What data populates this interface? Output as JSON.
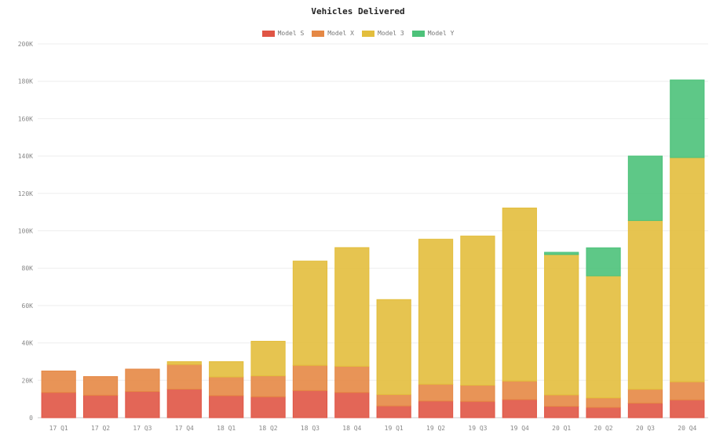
{
  "chart_data": {
    "type": "bar",
    "stacked": true,
    "title": "Vehicles Delivered",
    "categories": [
      "17 Q1",
      "17 Q2",
      "17 Q3",
      "17 Q4",
      "18 Q1",
      "18 Q2",
      "18 Q3",
      "18 Q4",
      "19 Q1",
      "19 Q2",
      "19 Q3",
      "19 Q4",
      "20 Q1",
      "20 Q2",
      "20 Q3",
      "20 Q4"
    ],
    "series": [
      {
        "name": "Model S",
        "color": "#e05545",
        "values": [
          13500,
          12000,
          14000,
          15300,
          11800,
          11200,
          14500,
          13500,
          6300,
          8900,
          8700,
          9700,
          6100,
          5500,
          7800,
          9500
        ]
      },
      {
        "name": "Model X",
        "color": "#e58845",
        "values": [
          11500,
          10000,
          12000,
          13200,
          10000,
          11200,
          13500,
          14000,
          6100,
          9000,
          8700,
          9900,
          6100,
          5100,
          7400,
          9700
        ]
      },
      {
        "name": "Model 3",
        "color": "#e3be3d",
        "values": [
          0,
          0,
          0,
          1500,
          8200,
          18500,
          55800,
          63500,
          50800,
          77600,
          79800,
          92600,
          75100,
          65300,
          90300,
          120000
        ]
      },
      {
        "name": "Model Y",
        "color": "#4dc27a",
        "values": [
          0,
          0,
          0,
          0,
          0,
          0,
          0,
          0,
          0,
          0,
          0,
          0,
          1200,
          15000,
          34500,
          41500
        ]
      }
    ],
    "ylim": [
      0,
      200000
    ],
    "yticks": [
      "0",
      "20K",
      "40K",
      "60K",
      "80K",
      "100K",
      "120K",
      "140K",
      "160K",
      "180K",
      "200K"
    ],
    "ytick_values": [
      0,
      20000,
      40000,
      60000,
      80000,
      100000,
      120000,
      140000,
      160000,
      180000,
      200000
    ],
    "grid": true,
    "legend_position": "top-center"
  }
}
